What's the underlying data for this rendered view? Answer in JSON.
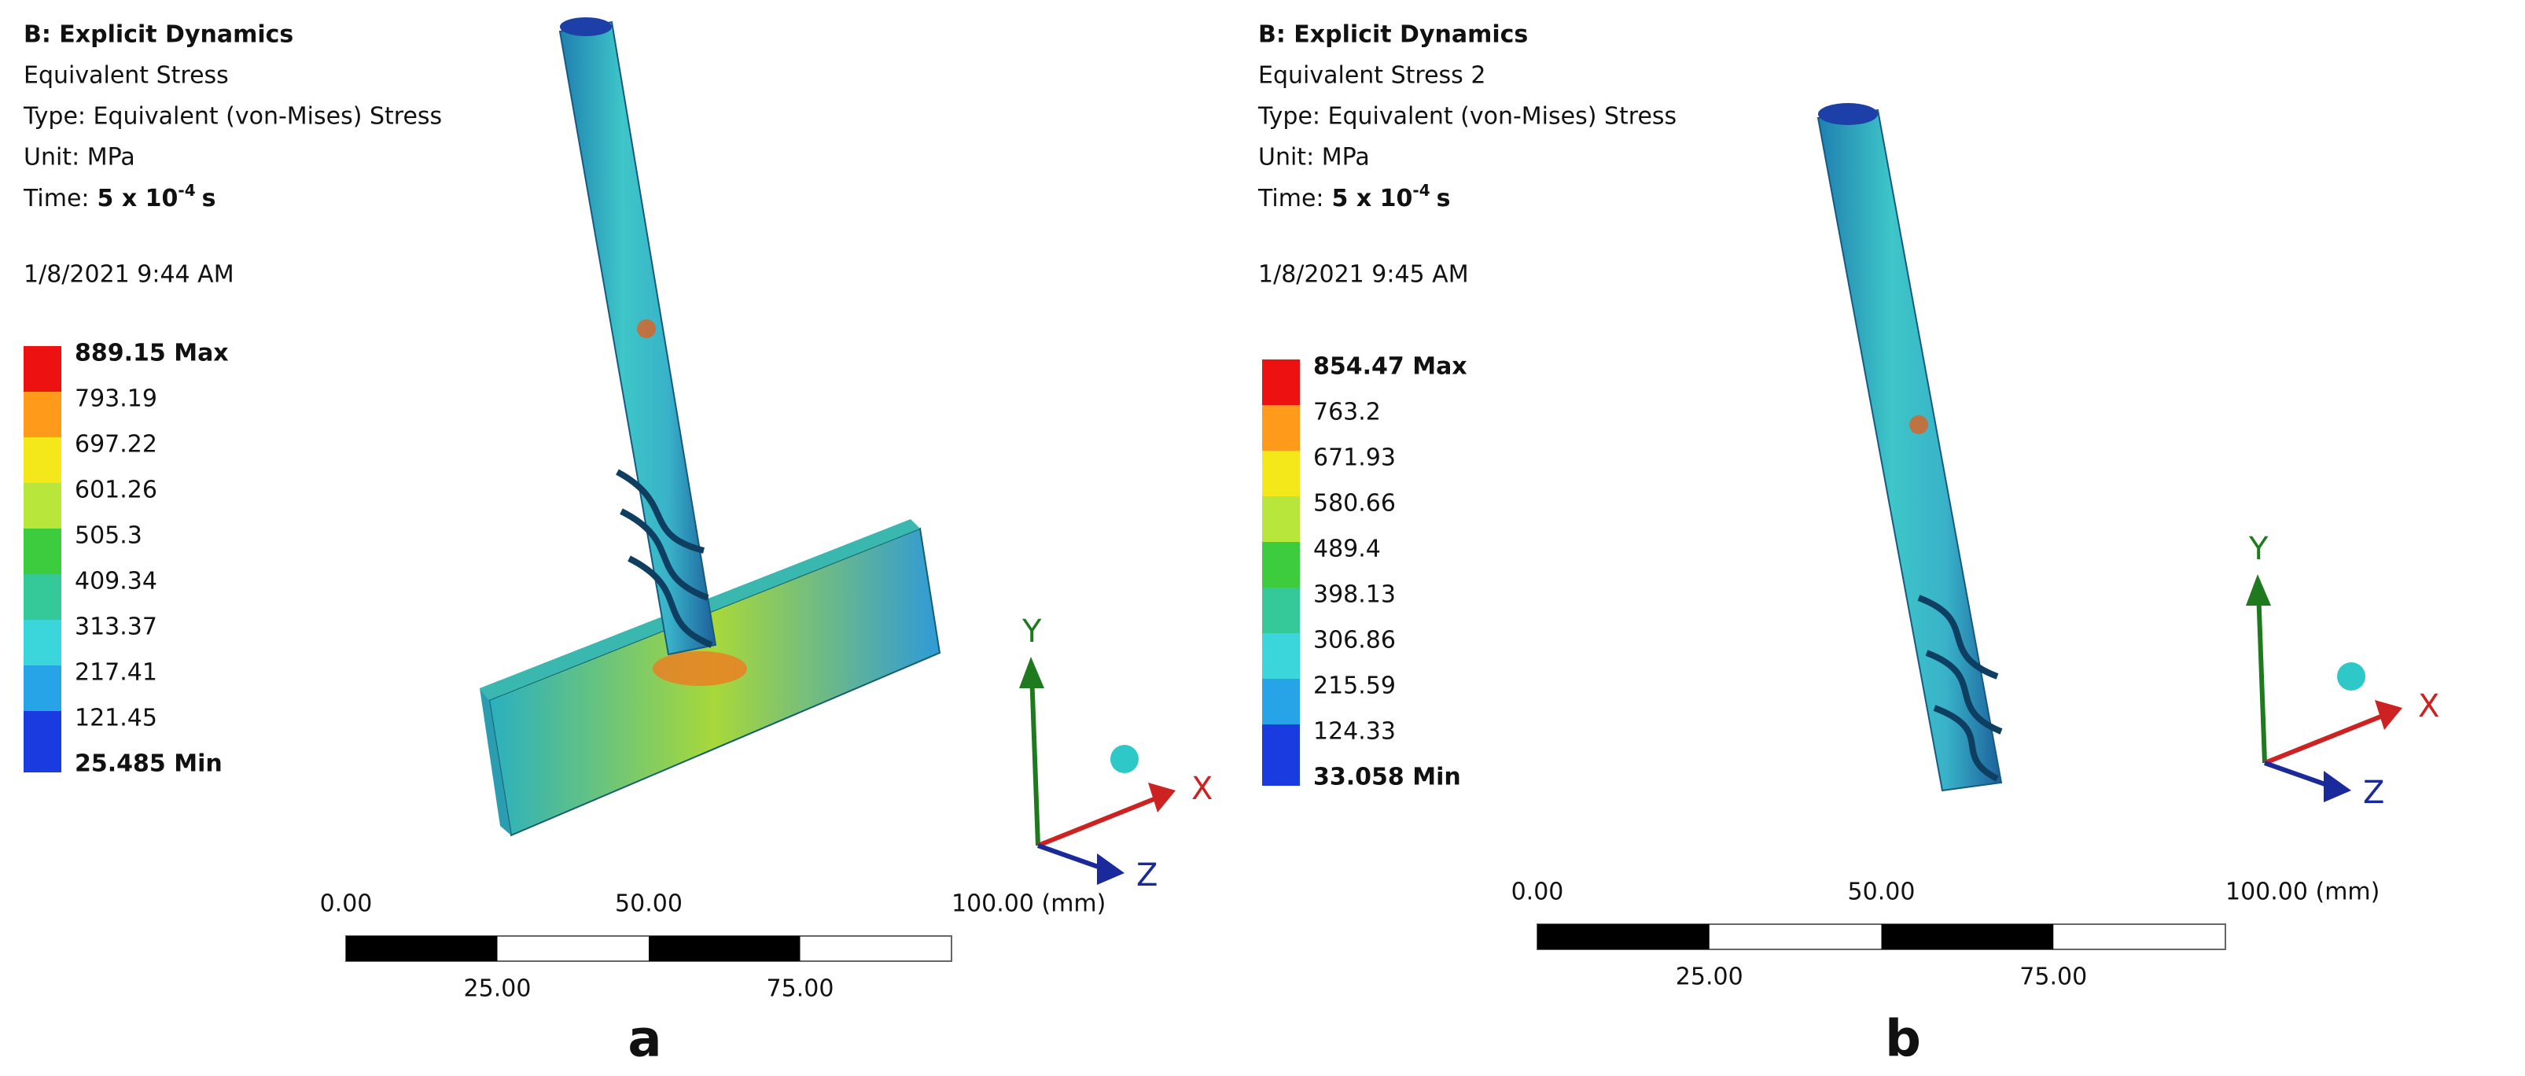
{
  "panels": [
    {
      "header": {
        "title": "B: Explicit Dynamics",
        "result": "Equivalent Stress",
        "type": "Type: Equivalent (von-Mises) Stress",
        "unit": "Unit: MPa",
        "time_label": "Time:",
        "time_value": "5 x 10",
        "time_exponent": "-4",
        "time_unit": "s",
        "date": "1/8/2021 9:44 AM"
      },
      "legend": {
        "labels": [
          "889.15 Max",
          "793.19",
          "697.22",
          "601.26",
          "505.3",
          "409.34",
          "313.37",
          "217.41",
          "121.45",
          "25.485 Min"
        ],
        "colors": [
          "#ee1111",
          "#ff9a1a",
          "#f4e81a",
          "#b8e63a",
          "#3dcc3d",
          "#35c898",
          "#3ad6dc",
          "#27a4e8",
          "#1a3be0"
        ]
      },
      "axes": {
        "x": "X",
        "y": "Y",
        "z": "Z"
      },
      "scale": {
        "top": [
          "0.00",
          "50.00",
          "100.00 (mm)"
        ],
        "bottom": [
          "25.00",
          "75.00"
        ]
      },
      "label": "a"
    },
    {
      "header": {
        "title": "B: Explicit Dynamics",
        "result": "Equivalent Stress 2",
        "type": "Type: Equivalent (von-Mises) Stress",
        "unit": "Unit: MPa",
        "time_label": "Time:",
        "time_value": "5 x 10",
        "time_exponent": "-4",
        "time_unit": "s",
        "date": "1/8/2021 9:45 AM"
      },
      "legend": {
        "labels": [
          "854.47 Max",
          "763.2",
          "671.93",
          "580.66",
          "489.4",
          "398.13",
          "306.86",
          "215.59",
          "124.33",
          "33.058 Min"
        ],
        "colors": [
          "#ee1111",
          "#ff9a1a",
          "#f4e81a",
          "#b8e63a",
          "#3dcc3d",
          "#35c898",
          "#3ad6dc",
          "#27a4e8",
          "#1a3be0"
        ]
      },
      "axes": {
        "x": "X",
        "y": "Y",
        "z": "Z"
      },
      "scale": {
        "top": [
          "0.00",
          "50.00",
          "100.00 (mm)"
        ],
        "bottom": [
          "25.00",
          "75.00"
        ]
      },
      "label": "b"
    }
  ]
}
